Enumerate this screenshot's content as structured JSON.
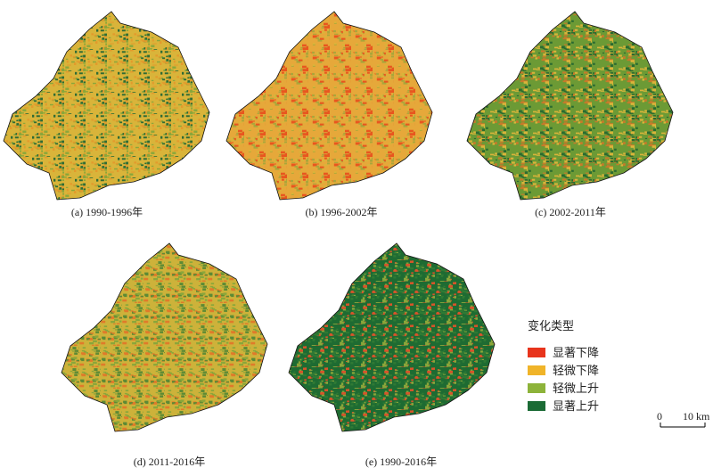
{
  "panels": [
    {
      "caption": "(a) 1990-1996年",
      "colors": [
        "#d9b43a",
        "#8aa63a",
        "#2f6b35",
        "#e39a2c"
      ]
    },
    {
      "caption": "(b) 1996-2002年",
      "colors": [
        "#e6a83a",
        "#d9b43a",
        "#e8561f",
        "#a9a63a"
      ]
    },
    {
      "caption": "(c) 2002-2011年",
      "colors": [
        "#6c9a35",
        "#2a6a30",
        "#d9b43a",
        "#c77a2a"
      ]
    },
    {
      "caption": "(d) 2011-2016年",
      "colors": [
        "#cdb23a",
        "#8aa63a",
        "#5d8a34",
        "#e07a2a"
      ]
    },
    {
      "caption": "(e) 1990-2016年",
      "colors": [
        "#1e6b32",
        "#2f7a34",
        "#d9542a",
        "#8aa63a"
      ]
    }
  ],
  "legend": {
    "title": "变化类型",
    "items": [
      {
        "label": "显著下降",
        "color": "#e8341c"
      },
      {
        "label": "轻微下降",
        "color": "#f0b429"
      },
      {
        "label": "轻微上升",
        "color": "#8db33a"
      },
      {
        "label": "显著上升",
        "color": "#1b6b35"
      }
    ]
  },
  "scale_bar": {
    "start": "0",
    "end": "10 km"
  }
}
